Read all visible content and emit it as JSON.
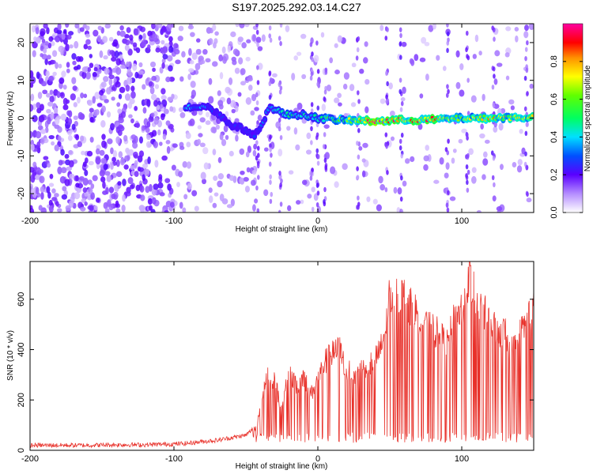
{
  "title": "S197.2025.292.03.14.C27",
  "chart_data": [
    {
      "type": "heatmap",
      "xlabel": "Height of straight line (km)",
      "ylabel": "Frequency (Hz)",
      "xlim": [
        -200,
        150
      ],
      "ylim": [
        -25,
        25
      ],
      "x_ticks": [
        "-200",
        "-100",
        "0",
        "100"
      ],
      "x_tick_values": [
        -200,
        -100,
        0,
        100
      ],
      "y_ticks": [
        "20",
        "10",
        "0",
        "-10",
        "-20"
      ],
      "y_tick_values": [
        20,
        10,
        0,
        -10,
        -20
      ],
      "colorbar_label": "Normalized spectral amplitude",
      "colorbar_ticks": [
        "0.0",
        "0.2",
        "0.4",
        "0.6",
        "0.8"
      ],
      "colorbar_tick_values": [
        0.0,
        0.2,
        0.4,
        0.6,
        0.8
      ],
      "colorbar_range": [
        0,
        1
      ],
      "ridge": [
        {
          "x": -88,
          "f": 3.0,
          "amp": 0.35
        },
        {
          "x": -78,
          "f": 3.2,
          "amp": 0.35
        },
        {
          "x": -70,
          "f": 1.5,
          "amp": 0.25
        },
        {
          "x": -62,
          "f": -1.5,
          "amp": 0.25
        },
        {
          "x": -55,
          "f": -2.5,
          "amp": 0.25
        },
        {
          "x": -48,
          "f": -3.5,
          "amp": 0.3
        },
        {
          "x": -44,
          "f": -5.0,
          "amp": 0.25
        },
        {
          "x": -33,
          "f": 3.0,
          "amp": 0.35
        },
        {
          "x": -22,
          "f": 0.8,
          "amp": 0.45
        },
        {
          "x": -12,
          "f": 1.0,
          "amp": 0.45
        },
        {
          "x": -5,
          "f": 0.5,
          "amp": 0.4
        },
        {
          "x": 0,
          "f": 0.0,
          "amp": 0.5
        },
        {
          "x": 15,
          "f": -0.5,
          "amp": 0.55
        },
        {
          "x": 40,
          "f": -0.8,
          "amp": 0.95
        },
        {
          "x": 60,
          "f": -0.5,
          "amp": 0.8
        },
        {
          "x": 80,
          "f": -0.4,
          "amp": 0.85
        },
        {
          "x": 100,
          "f": 0.0,
          "amp": 0.6
        },
        {
          "x": 120,
          "f": 0.0,
          "amp": 0.75
        },
        {
          "x": 140,
          "f": 0.2,
          "amp": 0.7
        }
      ]
    },
    {
      "type": "line",
      "xlabel": "Height of straight line (km)",
      "ylabel": "SNR (10 * v/v)",
      "xlim": [
        -200,
        150
      ],
      "ylim": [
        0,
        750
      ],
      "x_ticks": [
        "-200",
        "-100",
        "0",
        "100"
      ],
      "x_tick_values": [
        -200,
        -100,
        0,
        100
      ],
      "y_ticks": [
        "0",
        "200",
        "400",
        "600"
      ],
      "y_tick_values": [
        0,
        200,
        400,
        600
      ],
      "color": "#e8312a",
      "series": [
        {
          "name": "SNR",
          "x": [
            -200,
            -180,
            -160,
            -140,
            -120,
            -100,
            -90,
            -80,
            -70,
            -60,
            -50,
            -42,
            -38,
            -35,
            -30,
            -25,
            -20,
            -15,
            -10,
            -5,
            0,
            5,
            10,
            15,
            20,
            25,
            30,
            35,
            40,
            45,
            50,
            55,
            60,
            65,
            70,
            75,
            80,
            85,
            90,
            95,
            100,
            105,
            110,
            115,
            120,
            125,
            130,
            135,
            140,
            145,
            150
          ],
          "values": [
            20,
            20,
            20,
            22,
            22,
            25,
            28,
            35,
            40,
            50,
            60,
            100,
            250,
            300,
            280,
            150,
            320,
            250,
            300,
            220,
            280,
            350,
            380,
            400,
            320,
            300,
            330,
            340,
            360,
            420,
            620,
            620,
            600,
            560,
            540,
            500,
            480,
            450,
            420,
            520,
            560,
            700,
            600,
            550,
            500,
            480,
            460,
            400,
            450,
            520,
            560
          ]
        }
      ]
    }
  ]
}
